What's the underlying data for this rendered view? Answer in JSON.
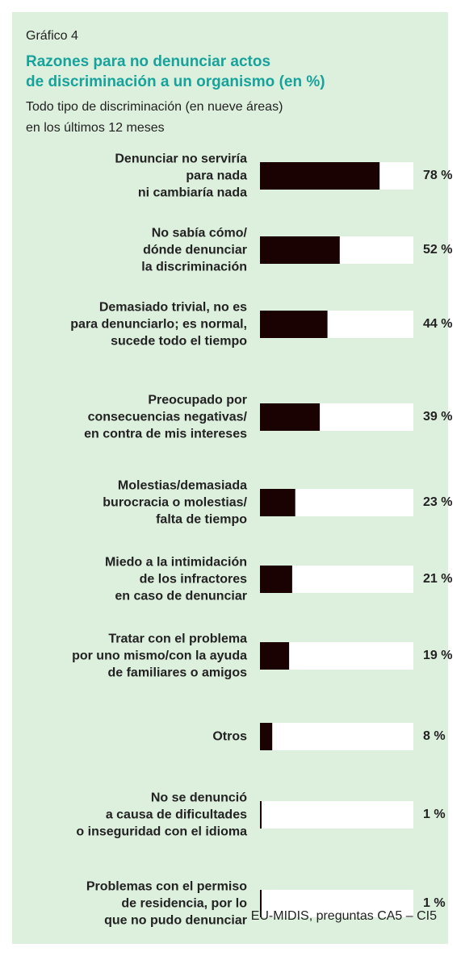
{
  "chart_data": {
    "type": "bar",
    "orientation": "horizontal",
    "label": "Gráfico 4",
    "title": "Razones para no denunciar actos\nde discriminación a un organismo (en %)",
    "subtitle": "Todo tipo de discriminación (en nueve áreas)\nen los últimos 12 meses",
    "source": "EU-MIDIS, preguntas CA5 – CI5",
    "categories": [
      "Denunciar no serviría\npara nada\nni cambiaría nada",
      "No sabía cómo/\ndónde denunciar\nla discriminación",
      "Demasiado trivial, no es\npara denunciarlo; es normal,\nsucede todo el tiempo",
      "Preocupado por\nconsecuencias negativas/\nen contra de mis intereses",
      "Molestias/demasiada\nburocracia o molestias/\nfalta de tiempo",
      "Miedo a la intimidación\nde los infractores\nen caso de denunciar",
      "Tratar con el problema\npor uno mismo/con la ayuda\nde familiares o amigos",
      "Otros",
      "No se denunció\na causa de dificultades\no inseguridad con el idioma",
      "Problemas con el permiso\nde residencia, por lo\nque no pudo denunciar"
    ],
    "values": [
      78,
      52,
      44,
      39,
      23,
      21,
      19,
      8,
      1,
      1
    ],
    "value_labels": [
      "78 %",
      "52 %",
      "44 %",
      "39 %",
      "23 %",
      "21 %",
      "19 %",
      "8 %",
      "1 %",
      "1 %"
    ],
    "color": "#1a0202",
    "xlim": [
      0,
      100
    ]
  }
}
